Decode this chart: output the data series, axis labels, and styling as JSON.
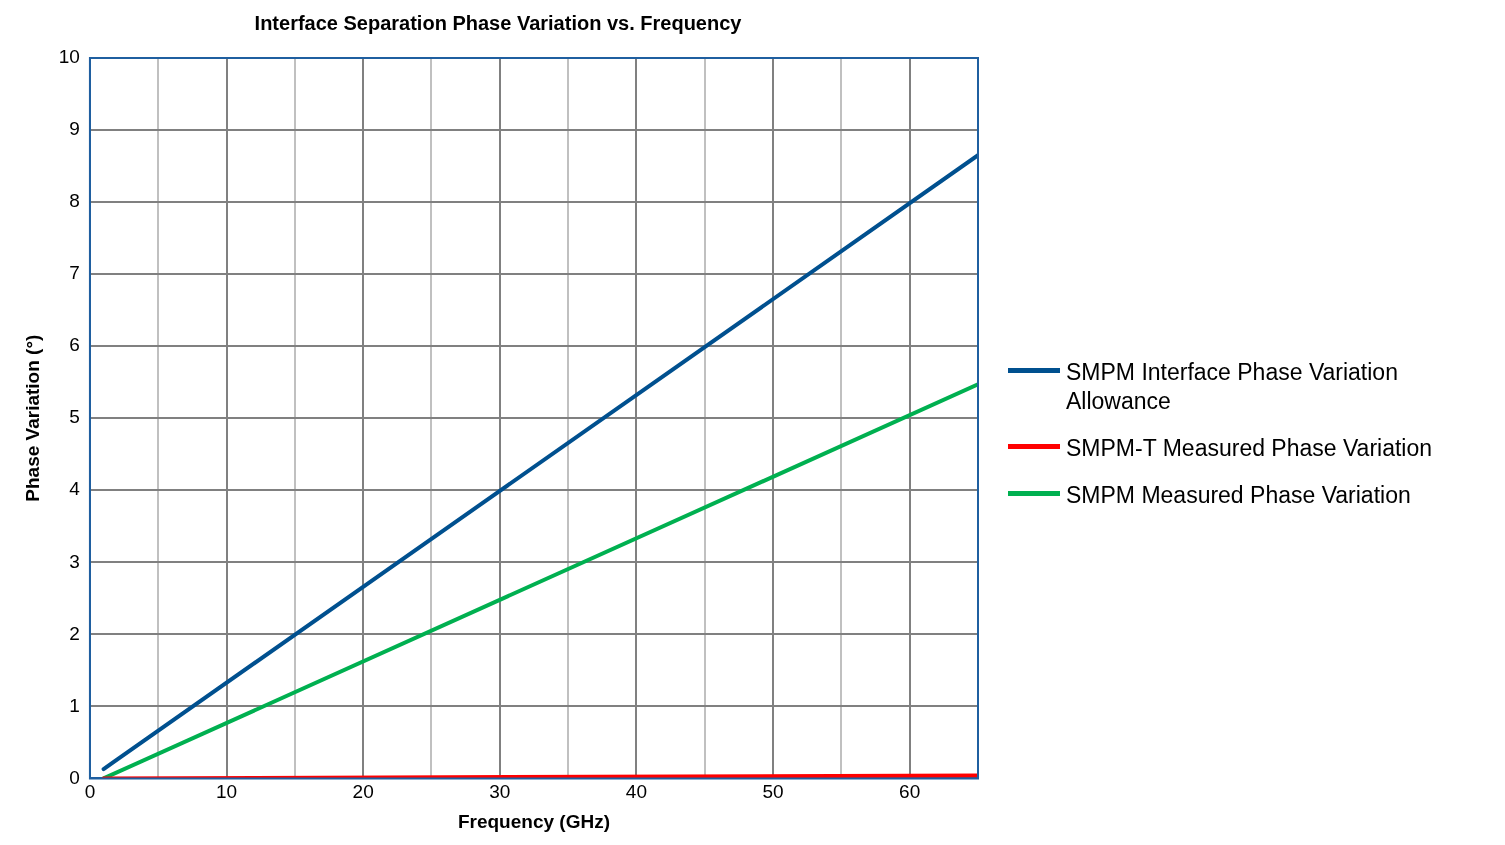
{
  "chart_data": {
    "type": "line",
    "title": "Interface Separation Phase Variation vs. Frequency",
    "xlabel": "Frequency (GHz)",
    "ylabel": "Phase Variation (°)",
    "x": [
      1,
      65
    ],
    "series": [
      {
        "name": "SMPM Interface Phase Variation Allowance",
        "color": "#00508f",
        "values": [
          0.13,
          8.65
        ]
      },
      {
        "name": "SMPM-T Measured Phase Variation",
        "color": "#ff0000",
        "values": [
          0,
          0.04
        ]
      },
      {
        "name": "SMPM Measured Phase Variation",
        "color": "#00b050",
        "values": [
          0,
          5.47
        ]
      }
    ],
    "xlim": [
      0,
      65
    ],
    "xticks": [
      0,
      {
        "value": 5,
        "label": null
      },
      10,
      {
        "value": 15,
        "label": null
      },
      20,
      {
        "value": 25,
        "label": null
      },
      30,
      {
        "value": 35,
        "label": null
      },
      40,
      {
        "value": 45,
        "label": null
      },
      50,
      {
        "value": 55,
        "label": null
      },
      60,
      {
        "value": 65,
        "label": null
      }
    ],
    "ylim": [
      0,
      10
    ],
    "yticks": [
      0,
      1,
      2,
      3,
      4,
      5,
      6,
      7,
      8,
      9,
      10
    ],
    "grid": true,
    "legend": "right",
    "marker": "none",
    "line_style": "solid"
  }
}
